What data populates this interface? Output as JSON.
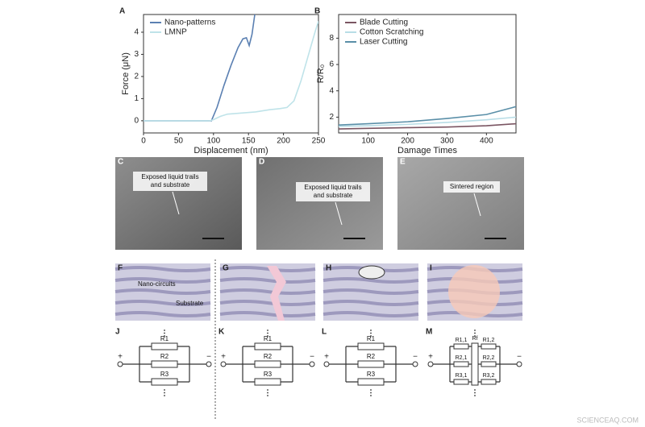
{
  "chart_data": [
    {
      "type": "line",
      "label": "A",
      "xlabel": "Displacement (nm)",
      "ylabel": "Force (μN)",
      "xlim": [
        0,
        250
      ],
      "ylim": [
        -0.55,
        4.8
      ],
      "xticks": [
        0,
        50,
        100,
        150,
        200,
        250
      ],
      "yticks": [
        0,
        1,
        2,
        3,
        4
      ],
      "legend": "upper left",
      "series": [
        {
          "name": "Nano-patterns",
          "color": "#5b80b2",
          "x": [
            0,
            50,
            90,
            97,
            105,
            115,
            125,
            135,
            142,
            147,
            151,
            155,
            159
          ],
          "values": [
            0,
            0,
            0,
            0,
            0.6,
            1.6,
            2.5,
            3.3,
            3.7,
            3.75,
            3.4,
            3.9,
            4.8
          ]
        },
        {
          "name": "LMNP",
          "color": "#bfe3e9",
          "x": [
            0,
            50,
            95,
            100,
            110,
            120,
            140,
            160,
            180,
            195,
            205,
            215,
            225,
            235,
            245,
            250
          ],
          "values": [
            0,
            0,
            0,
            0.05,
            0.2,
            0.3,
            0.35,
            0.4,
            0.5,
            0.55,
            0.6,
            0.9,
            1.8,
            2.9,
            4.0,
            4.5
          ]
        }
      ]
    },
    {
      "type": "line",
      "label": "B",
      "xlabel": "Damage Times",
      "ylabel": "R/R₀",
      "xlim": [
        25,
        475
      ],
      "ylim": [
        0.8,
        9.8
      ],
      "xticks": [
        100,
        200,
        300,
        400
      ],
      "yticks": [
        2,
        4,
        6,
        8
      ],
      "legend": "upper left",
      "series": [
        {
          "name": "Blade Cutting",
          "color": "#7a5562",
          "x": [
            25,
            100,
            200,
            300,
            400,
            475
          ],
          "values": [
            1.1,
            1.15,
            1.2,
            1.25,
            1.35,
            1.5
          ]
        },
        {
          "name": "Cotton Scratching",
          "color": "#b8dde6",
          "x": [
            25,
            100,
            200,
            300,
            400,
            475
          ],
          "values": [
            1.3,
            1.35,
            1.45,
            1.6,
            1.8,
            2.0
          ]
        },
        {
          "name": "Laser Cutting",
          "color": "#5a8fa8",
          "x": [
            25,
            100,
            200,
            300,
            400,
            475
          ],
          "values": [
            1.4,
            1.5,
            1.65,
            1.9,
            2.2,
            2.8
          ]
        }
      ]
    }
  ],
  "micrographs": [
    {
      "label": "C",
      "annotation": [
        "Exposed liquid trails",
        "and substrate"
      ]
    },
    {
      "label": "D",
      "annotation": [
        "Exposed liquid trails",
        "and substrate"
      ]
    },
    {
      "label": "E",
      "annotation": [
        "Sintered region"
      ]
    }
  ],
  "schematics": [
    {
      "label": "F",
      "texts": [
        "Nano-circuits",
        "Substrate"
      ]
    },
    {
      "label": "G",
      "texts": []
    },
    {
      "label": "H",
      "texts": []
    },
    {
      "label": "I",
      "texts": []
    }
  ],
  "circuits": [
    {
      "label": "J",
      "plus": "+",
      "minus": "−",
      "resistors": [
        "R1",
        "R2",
        "R3"
      ]
    },
    {
      "label": "K",
      "plus": "+",
      "minus": "−",
      "resistors": [
        "R1",
        "R2",
        "R3"
      ]
    },
    {
      "label": "L",
      "plus": "+",
      "minus": "−",
      "resistors": [
        "R1",
        "R2",
        "R3"
      ]
    },
    {
      "label": "M",
      "plus": "+",
      "minus": "−",
      "resistors": [
        "R1,1",
        "R2,1",
        "R3,1",
        "Rf",
        "R1,2",
        "R2,2",
        "R3,2"
      ]
    }
  ],
  "watermark": "SCIENCEAQ.COM"
}
